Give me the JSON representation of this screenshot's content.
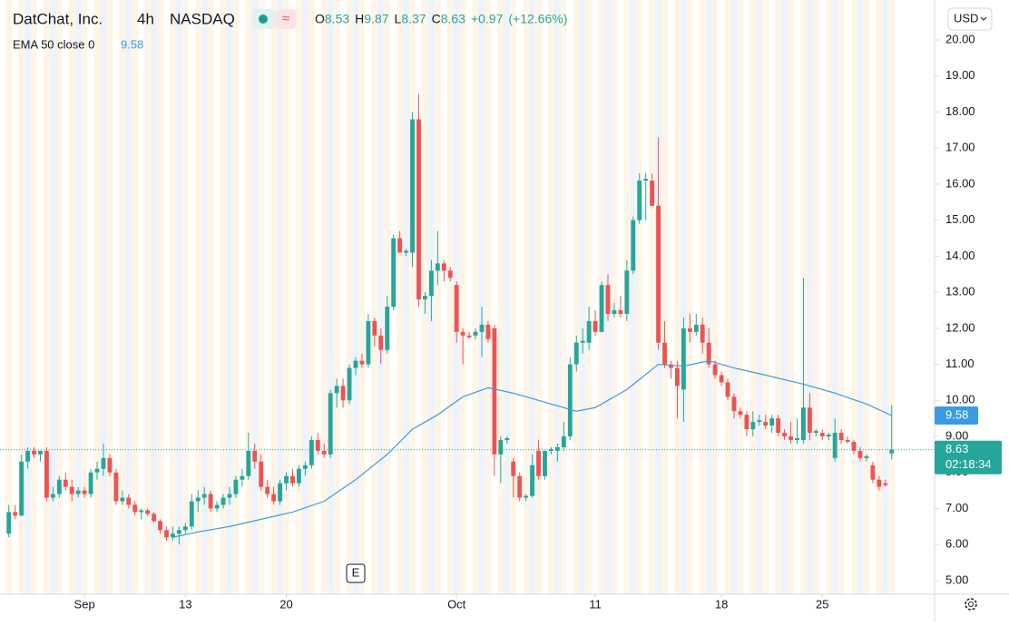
{
  "chart_data": {
    "type": "candlestick",
    "title": "DatChat, Inc.",
    "interval": "4h",
    "exchange": "NASDAQ",
    "legend": {
      "open_label": "O",
      "open": "8.53",
      "high_label": "H",
      "high": "9.87",
      "low_label": "L",
      "low": "8.37",
      "close_label": "C",
      "close": "8.63",
      "change": "+0.97",
      "change_pct": "(+12.66%)"
    },
    "currency": "USD",
    "up_color": "#26a69a",
    "down_color": "#ef5350",
    "candles": [
      [
        6.3,
        7.1,
        6.2,
        6.9
      ],
      [
        6.9,
        7.1,
        6.7,
        6.8
      ],
      [
        6.8,
        8.5,
        6.8,
        8.3
      ],
      [
        8.3,
        8.7,
        8.1,
        8.6
      ],
      [
        8.6,
        8.7,
        8.4,
        8.5
      ],
      [
        8.5,
        8.6,
        8.3,
        8.6
      ],
      [
        8.6,
        8.7,
        7.2,
        7.3
      ],
      [
        7.3,
        7.6,
        7.2,
        7.4
      ],
      [
        7.4,
        7.9,
        7.3,
        7.8
      ],
      [
        7.8,
        8.0,
        7.5,
        7.6
      ],
      [
        7.6,
        7.8,
        7.2,
        7.4
      ],
      [
        7.4,
        7.6,
        7.3,
        7.5
      ],
      [
        7.5,
        7.6,
        7.3,
        7.4
      ],
      [
        7.4,
        8.1,
        7.3,
        8.0
      ],
      [
        8.0,
        8.3,
        7.8,
        8.1
      ],
      [
        8.1,
        8.8,
        7.9,
        8.4
      ],
      [
        8.4,
        8.5,
        7.9,
        8.0
      ],
      [
        8.0,
        8.1,
        7.1,
        7.2
      ],
      [
        7.2,
        7.5,
        7.1,
        7.3
      ],
      [
        7.3,
        7.4,
        7.0,
        7.1
      ],
      [
        7.1,
        7.2,
        6.8,
        6.9
      ],
      [
        6.9,
        7.0,
        6.7,
        6.95
      ],
      [
        6.95,
        7.0,
        6.8,
        6.85
      ],
      [
        6.85,
        6.9,
        6.6,
        6.65
      ],
      [
        6.65,
        6.7,
        6.3,
        6.4
      ],
      [
        6.4,
        6.5,
        6.1,
        6.2
      ],
      [
        6.2,
        6.5,
        6.1,
        6.3
      ],
      [
        6.3,
        6.5,
        6.0,
        6.4
      ],
      [
        6.4,
        6.6,
        6.3,
        6.5
      ],
      [
        6.5,
        7.4,
        6.4,
        7.2
      ],
      [
        7.2,
        7.5,
        6.9,
        7.3
      ],
      [
        7.3,
        7.6,
        7.1,
        7.4
      ],
      [
        7.4,
        7.5,
        6.9,
        7.0
      ],
      [
        7.0,
        7.2,
        6.9,
        7.1
      ],
      [
        7.1,
        7.4,
        7.0,
        7.3
      ],
      [
        7.3,
        7.6,
        7.1,
        7.4
      ],
      [
        7.4,
        7.9,
        7.3,
        7.8
      ],
      [
        7.8,
        8.1,
        7.6,
        7.9
      ],
      [
        7.9,
        9.1,
        7.8,
        8.6
      ],
      [
        8.6,
        8.8,
        8.1,
        8.3
      ],
      [
        8.3,
        8.5,
        7.5,
        7.6
      ],
      [
        7.6,
        7.8,
        7.3,
        7.4
      ],
      [
        7.4,
        7.6,
        7.1,
        7.2
      ],
      [
        7.2,
        7.8,
        7.1,
        7.7
      ],
      [
        7.7,
        8.0,
        7.5,
        7.9
      ],
      [
        7.9,
        8.1,
        7.6,
        7.7
      ],
      [
        7.7,
        8.2,
        7.6,
        8.1
      ],
      [
        8.1,
        8.3,
        7.9,
        8.2
      ],
      [
        8.2,
        9.0,
        8.1,
        8.9
      ],
      [
        8.9,
        9.1,
        8.5,
        8.6
      ],
      [
        8.6,
        8.8,
        8.4,
        8.5
      ],
      [
        8.5,
        10.3,
        8.4,
        10.2
      ],
      [
        10.2,
        10.6,
        9.8,
        10.4
      ],
      [
        10.4,
        10.6,
        9.8,
        10.0
      ],
      [
        10.0,
        11.0,
        9.9,
        10.9
      ],
      [
        10.9,
        11.2,
        10.7,
        11.1
      ],
      [
        11.1,
        11.3,
        10.9,
        11.0
      ],
      [
        11.0,
        12.4,
        10.9,
        12.2
      ],
      [
        12.2,
        12.3,
        11.5,
        11.8
      ],
      [
        11.8,
        12.0,
        11.0,
        11.4
      ],
      [
        11.4,
        12.9,
        11.3,
        12.6
      ],
      [
        12.6,
        14.6,
        12.5,
        14.5
      ],
      [
        14.5,
        14.7,
        14.1,
        14.1
      ],
      [
        14.1,
        14.2,
        14.0,
        14.15
      ],
      [
        14.1,
        18.0,
        13.7,
        17.8
      ],
      [
        17.8,
        18.5,
        12.6,
        12.8
      ],
      [
        12.8,
        13.0,
        12.4,
        12.9
      ],
      [
        12.9,
        13.9,
        12.2,
        13.6
      ],
      [
        13.6,
        14.7,
        13.2,
        13.8
      ],
      [
        13.8,
        13.9,
        13.3,
        13.6
      ],
      [
        13.6,
        13.7,
        13.3,
        13.4
      ],
      [
        13.2,
        13.3,
        11.6,
        11.9
      ],
      [
        11.9,
        12.0,
        11.0,
        11.8
      ],
      [
        11.8,
        11.9,
        11.7,
        11.75
      ],
      [
        11.8,
        12.0,
        11.7,
        11.9
      ],
      [
        11.9,
        12.6,
        11.2,
        12.1
      ],
      [
        12.1,
        12.2,
        11.6,
        11.7
      ],
      [
        12.0,
        12.1,
        7.9,
        8.5
      ],
      [
        8.5,
        9.0,
        7.7,
        8.9
      ],
      [
        8.9,
        9.0,
        8.8,
        8.95
      ],
      [
        8.3,
        8.4,
        7.3,
        7.9
      ],
      [
        7.9,
        8.0,
        7.2,
        7.3
      ],
      [
        7.3,
        7.4,
        7.2,
        7.35
      ],
      [
        7.35,
        8.5,
        7.3,
        8.2
      ],
      [
        8.6,
        8.9,
        7.8,
        7.9
      ],
      [
        7.9,
        8.5,
        7.8,
        8.6
      ],
      [
        8.6,
        8.7,
        8.5,
        8.65
      ],
      [
        8.6,
        8.8,
        8.3,
        8.7
      ],
      [
        8.7,
        9.4,
        8.6,
        9.0
      ],
      [
        9.0,
        11.2,
        8.9,
        11.0
      ],
      [
        11.0,
        11.8,
        10.8,
        11.6
      ],
      [
        11.6,
        12.0,
        11.3,
        11.65
      ],
      [
        11.6,
        12.6,
        11.4,
        12.2
      ],
      [
        12.2,
        12.5,
        11.8,
        11.9
      ],
      [
        11.9,
        13.3,
        11.9,
        13.2
      ],
      [
        13.2,
        13.5,
        12.2,
        12.4
      ],
      [
        12.4,
        12.7,
        12.3,
        12.5
      ],
      [
        12.5,
        12.9,
        12.3,
        12.4
      ],
      [
        12.4,
        13.9,
        12.2,
        13.6
      ],
      [
        13.6,
        15.1,
        13.5,
        15.0
      ],
      [
        15.0,
        16.3,
        14.9,
        16.1
      ],
      [
        16.1,
        16.3,
        15.0,
        16.15
      ],
      [
        16.1,
        16.3,
        15.4,
        15.4
      ],
      [
        15.4,
        17.3,
        11.4,
        11.6
      ],
      [
        11.6,
        12.2,
        10.9,
        11.0
      ],
      [
        11.0,
        11.1,
        10.6,
        10.9
      ],
      [
        10.9,
        11.1,
        9.5,
        10.4
      ],
      [
        10.3,
        12.3,
        9.4,
        12.0
      ],
      [
        12.0,
        12.4,
        11.6,
        11.9
      ],
      [
        11.9,
        12.4,
        11.8,
        12.1
      ],
      [
        12.1,
        12.3,
        11.3,
        11.6
      ],
      [
        11.6,
        12.0,
        10.9,
        11.0
      ],
      [
        11.0,
        11.1,
        10.6,
        10.7
      ],
      [
        10.7,
        10.8,
        10.4,
        10.5
      ],
      [
        10.5,
        10.6,
        10.0,
        10.1
      ],
      [
        10.1,
        10.2,
        9.5,
        9.7
      ],
      [
        9.7,
        9.8,
        9.5,
        9.6
      ],
      [
        9.6,
        9.7,
        9.0,
        9.2
      ],
      [
        9.2,
        9.7,
        9.0,
        9.4
      ],
      [
        9.4,
        9.6,
        9.3,
        9.45
      ],
      [
        9.4,
        9.6,
        9.2,
        9.3
      ],
      [
        9.3,
        9.6,
        9.1,
        9.5
      ],
      [
        9.5,
        9.6,
        9.0,
        9.1
      ],
      [
        9.1,
        9.2,
        8.9,
        9.0
      ],
      [
        9.0,
        9.4,
        8.8,
        8.9
      ],
      [
        8.9,
        9.5,
        8.8,
        8.95
      ],
      [
        8.9,
        13.4,
        8.8,
        9.8
      ],
      [
        9.8,
        10.2,
        8.9,
        9.1
      ],
      [
        9.1,
        9.2,
        9.0,
        9.15
      ],
      [
        9.1,
        9.2,
        8.9,
        9.0
      ],
      [
        9.0,
        9.1,
        8.9,
        9.05
      ],
      [
        8.4,
        9.5,
        8.3,
        9.1
      ],
      [
        9.1,
        9.2,
        8.8,
        8.9
      ],
      [
        8.9,
        9.0,
        8.8,
        8.85
      ],
      [
        8.85,
        8.9,
        8.5,
        8.6
      ],
      [
        8.6,
        8.7,
        8.3,
        8.4
      ],
      [
        8.4,
        8.5,
        8.3,
        8.45
      ],
      [
        8.2,
        8.3,
        7.7,
        7.8
      ],
      [
        7.8,
        7.9,
        7.5,
        7.6
      ],
      [
        7.7,
        7.8,
        7.6,
        7.65
      ],
      [
        8.53,
        9.87,
        8.37,
        8.63
      ]
    ],
    "series": [
      {
        "name": "EMA 50 close 0",
        "color": "#3a9be0",
        "x": [
          26,
          30,
          35,
          40,
          45,
          50,
          55,
          60,
          64,
          68,
          72,
          76,
          80,
          85,
          90,
          93,
          98,
          103,
          107,
          111,
          115,
          120,
          126,
          131,
          136,
          140
        ],
        "values": [
          6.2,
          6.35,
          6.5,
          6.7,
          6.9,
          7.2,
          7.8,
          8.5,
          9.2,
          9.6,
          10.1,
          10.35,
          10.2,
          9.95,
          9.7,
          9.8,
          10.3,
          11.0,
          10.95,
          11.1,
          10.9,
          10.7,
          10.45,
          10.2,
          9.9,
          9.58
        ],
        "last_label": "9.58"
      }
    ],
    "last_price": "8.63",
    "countdown": "02:18:34",
    "earnings_marker": {
      "label": "E",
      "x": 55
    },
    "xlim": [
      -1.4,
      146.8
    ],
    "xticks": [
      {
        "value": 12,
        "label": "Sep"
      },
      {
        "value": 28,
        "label": "13"
      },
      {
        "value": 44,
        "label": "20"
      },
      {
        "value": 71,
        "label": "Oct"
      },
      {
        "value": 93,
        "label": "11"
      },
      {
        "value": 113,
        "label": "18"
      },
      {
        "value": 129,
        "label": "25"
      }
    ],
    "ylim": [
      4.62,
      21.11
    ],
    "yticks": [
      {
        "value": 5,
        "label": "5.00"
      },
      {
        "value": 6,
        "label": "6.00"
      },
      {
        "value": 7,
        "label": "7.00"
      },
      {
        "value": 8,
        "label": "8.00"
      },
      {
        "value": 9,
        "label": "9.00"
      },
      {
        "value": 10,
        "label": "10.00"
      },
      {
        "value": 11,
        "label": "11.00"
      },
      {
        "value": 12,
        "label": "12.00"
      },
      {
        "value": 13,
        "label": "13.00"
      },
      {
        "value": 14,
        "label": "14.00"
      },
      {
        "value": 15,
        "label": "15.00"
      },
      {
        "value": 16,
        "label": "16.00"
      },
      {
        "value": 17,
        "label": "17.00"
      },
      {
        "value": 18,
        "label": "18.00"
      },
      {
        "value": 19,
        "label": "19.00"
      },
      {
        "value": 20,
        "label": "20.00"
      }
    ]
  }
}
